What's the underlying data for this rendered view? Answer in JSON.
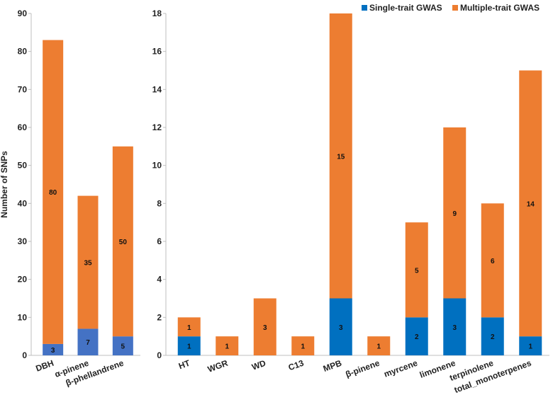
{
  "chart_data": [
    {
      "type": "bar",
      "stacked": true,
      "panel": "left",
      "ylabel": "Number of SNPs",
      "ylim": [
        0,
        90
      ],
      "yticks": [
        0,
        10,
        20,
        30,
        40,
        50,
        60,
        70,
        80,
        90
      ],
      "categories": [
        "DBH",
        "α-pinene",
        "β-phellandrene"
      ],
      "series": [
        {
          "name": "Single-trait GWAS",
          "color": "#4472C4",
          "values": [
            3,
            7,
            5
          ]
        },
        {
          "name": "Multiple-trait GWAS",
          "color": "#ED7D31",
          "values": [
            80,
            35,
            50
          ]
        }
      ]
    },
    {
      "type": "bar",
      "stacked": true,
      "panel": "right",
      "ylim": [
        0,
        18
      ],
      "yticks": [
        0,
        2,
        4,
        6,
        8,
        10,
        12,
        14,
        16,
        18
      ],
      "categories": [
        "HT",
        "WGR",
        "WD",
        "C13",
        "MPB",
        "β-pinene",
        "myrcene",
        "limonene",
        "terpinolene",
        "total_monoterpenes"
      ],
      "series": [
        {
          "name": "Single-trait GWAS",
          "color": "#0070C0",
          "values": [
            1,
            0,
            0,
            0,
            3,
            0,
            2,
            3,
            2,
            1
          ]
        },
        {
          "name": "Multiple-trait GWAS",
          "color": "#ED7D31",
          "values": [
            1,
            1,
            3,
            1,
            15,
            1,
            5,
            9,
            6,
            14
          ]
        }
      ]
    }
  ],
  "legend": {
    "position": "top-right",
    "items": [
      {
        "label": "Single-trait GWAS",
        "color": "#0070C0"
      },
      {
        "label": "Multiple-trait GWAS",
        "color": "#ED7D31"
      }
    ]
  }
}
